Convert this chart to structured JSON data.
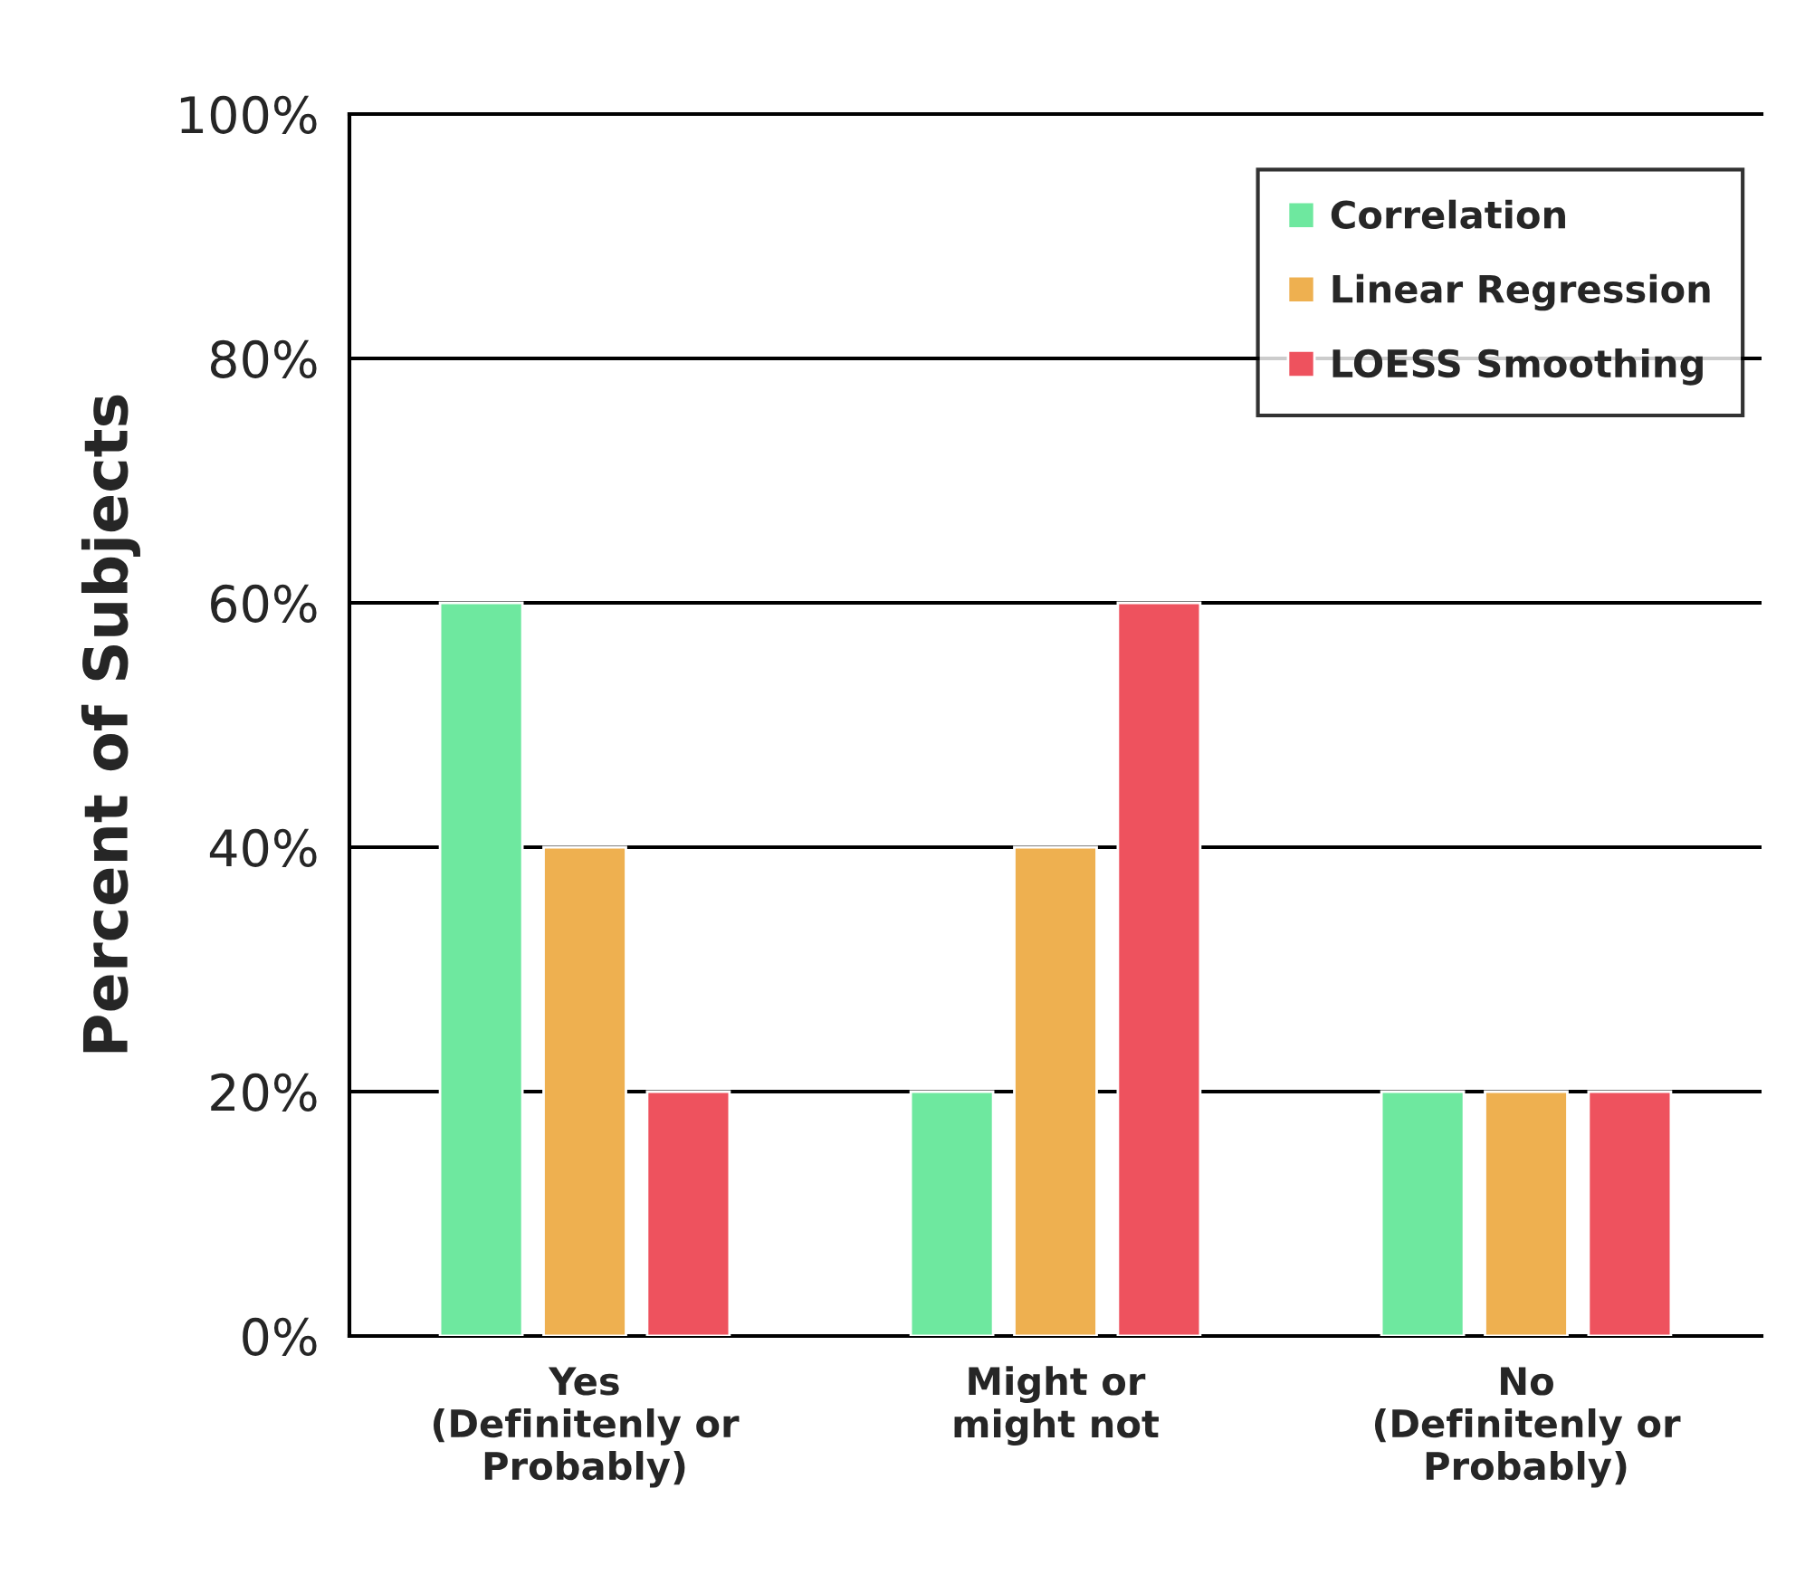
{
  "chart_data": {
    "type": "bar",
    "ylabel": "Percent of Subjects",
    "categories": [
      "Yes\n(Definitenly or\nProbably)",
      "Might or\nmight not",
      "No\n(Definitenly or\nProbably)"
    ],
    "series": [
      {
        "name": "Correlation",
        "color": "#6ee89f",
        "values": [
          60,
          20,
          20
        ]
      },
      {
        "name": "Linear Regression",
        "color": "#eeb050",
        "values": [
          40,
          40,
          20
        ]
      },
      {
        "name": "LOESS Smoothing",
        "color": "#ee525e",
        "values": [
          20,
          60,
          20
        ]
      }
    ],
    "ylim": [
      0,
      100
    ],
    "yticks": [
      {
        "value": 0,
        "label": "0%"
      },
      {
        "value": 20,
        "label": "20%"
      },
      {
        "value": 40,
        "label": "40%"
      },
      {
        "value": 60,
        "label": "60%"
      },
      {
        "value": 80,
        "label": "80%"
      },
      {
        "value": 100,
        "label": "100%"
      }
    ],
    "grid": "y",
    "legend": "top right"
  }
}
